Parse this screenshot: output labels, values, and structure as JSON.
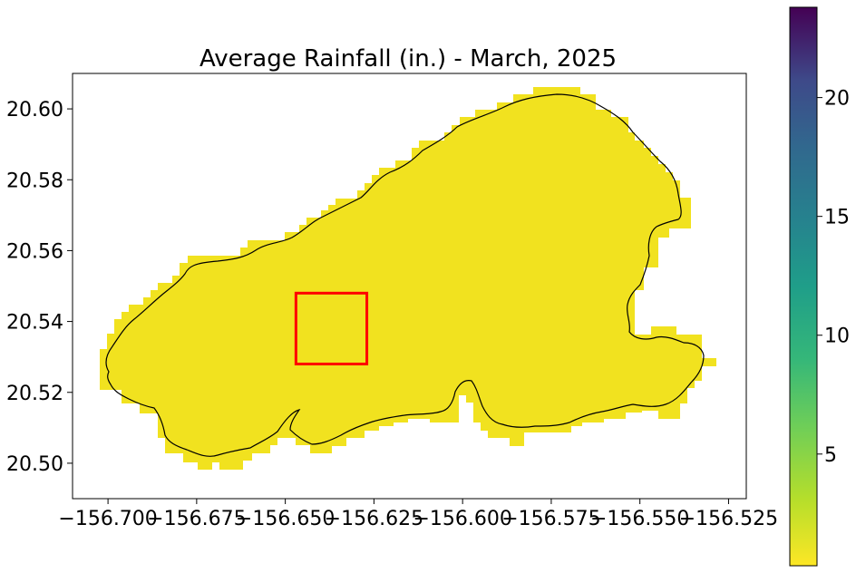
{
  "chart_data": {
    "type": "heatmap",
    "title": "Average Rainfall (in.) - March, 2025",
    "x_ticks": [
      -156.7,
      -156.675,
      -156.65,
      -156.625,
      -156.6,
      -156.575,
      -156.55,
      -156.525
    ],
    "x_tick_labels": [
      "−156.700",
      "−156.675",
      "−156.650",
      "−156.625",
      "−156.600",
      "−156.575",
      "−156.550",
      "−156.525"
    ],
    "y_ticks": [
      20.5,
      20.52,
      20.54,
      20.56,
      20.58,
      20.6
    ],
    "y_tick_labels": [
      "20.50",
      "20.52",
      "20.54",
      "20.56",
      "20.58",
      "20.60"
    ],
    "xlim": [
      -156.71,
      -156.52
    ],
    "ylim": [
      20.49,
      20.61
    ],
    "colorbar": {
      "colormap": "viridis_r",
      "range": [
        0.3,
        23.8
      ],
      "ticks": [
        5,
        10,
        15,
        20
      ],
      "tick_labels": [
        "5",
        "10",
        "15",
        "20"
      ]
    },
    "region_fill_value_approx": 0.5,
    "region_fill_color": "#f1e21f",
    "outline_color": "#000000",
    "highlight_box": {
      "lon_min": -156.647,
      "lon_max": -156.627,
      "lat_min": 20.528,
      "lat_max": 20.548,
      "color": "#ff0000"
    },
    "grid": false
  }
}
